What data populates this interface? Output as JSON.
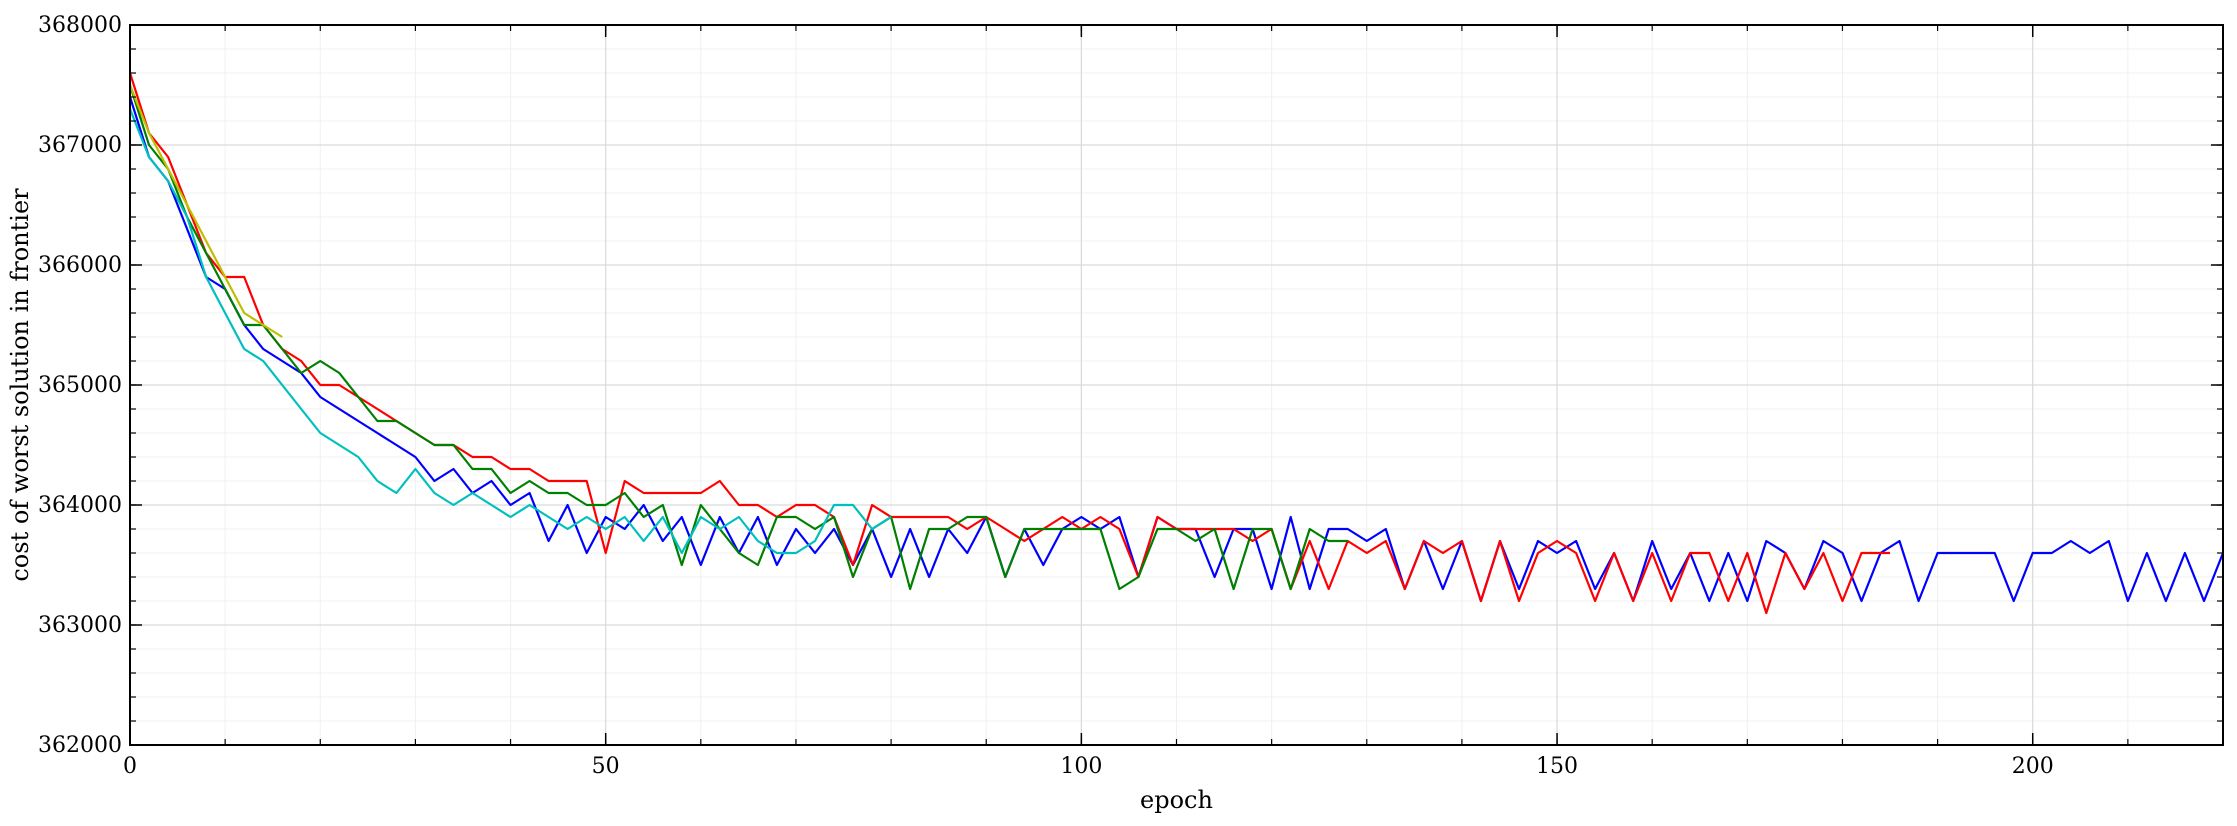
{
  "chart_data": {
    "type": "line",
    "title": "",
    "xlabel": "epoch",
    "ylabel": "cost of worst solution in frontier",
    "xlim": [
      0,
      220
    ],
    "ylim": [
      362000,
      368000
    ],
    "xticks": [
      0,
      50,
      100,
      150,
      200
    ],
    "yticks": [
      362000,
      363000,
      364000,
      365000,
      366000,
      367000,
      368000
    ],
    "xtick_labels": [
      "0",
      "50",
      "100",
      "150",
      "200"
    ],
    "ytick_labels": [
      "362000",
      "363000",
      "364000",
      "365000",
      "366000",
      "367000",
      "368000"
    ],
    "grid": true,
    "minor_grid": true,
    "legend": "none",
    "series": [
      {
        "color": "#0000ff",
        "x": [
          0,
          2,
          4,
          6,
          8,
          10,
          12,
          14,
          16,
          18,
          20,
          22,
          24,
          26,
          28,
          30,
          32,
          34,
          36,
          38,
          40,
          42,
          44,
          46,
          48,
          50,
          52,
          54,
          56,
          58,
          60,
          62,
          64,
          66,
          68,
          70,
          72,
          74,
          76,
          78,
          80,
          82,
          84,
          86,
          88,
          90,
          92,
          94,
          96,
          98,
          100,
          102,
          104,
          106,
          108,
          110,
          112,
          114,
          116,
          118,
          120,
          122,
          124,
          126,
          128,
          130,
          132,
          134,
          136,
          138,
          140,
          142,
          144,
          146,
          148,
          150,
          152,
          154,
          156,
          158,
          160,
          162,
          164,
          166,
          168,
          170,
          172,
          174,
          176,
          178,
          180,
          182,
          184,
          186,
          188,
          190,
          192,
          194,
          196,
          198,
          200,
          202,
          204,
          206,
          208,
          210,
          212,
          214,
          216,
          218,
          220
        ],
        "y": [
          367400,
          366900,
          366700,
          366300,
          365900,
          365800,
          365500,
          365300,
          365200,
          365100,
          364900,
          364800,
          364700,
          364600,
          364500,
          364400,
          364200,
          364300,
          364100,
          364200,
          364000,
          364100,
          363700,
          364000,
          363600,
          363900,
          363800,
          364000,
          363700,
          363900,
          363500,
          363900,
          363600,
          363900,
          363500,
          363800,
          363600,
          363800,
          363500,
          363800,
          363400,
          363800,
          363400,
          363800,
          363600,
          363900,
          363400,
          363800,
          363500,
          363800,
          363900,
          363800,
          363900,
          363400,
          363900,
          363800,
          363800,
          363400,
          363800,
          363800,
          363300,
          363900,
          363300,
          363800,
          363800,
          363700,
          363800,
          363300,
          363700,
          363300,
          363700,
          363200,
          363700,
          363300,
          363700,
          363600,
          363700,
          363300,
          363600,
          363200,
          363700,
          363300,
          363600,
          363200,
          363600,
          363200,
          363700,
          363600,
          363300,
          363700,
          363600,
          363200,
          363600,
          363700,
          363200,
          363600,
          363600,
          363600,
          363600,
          363200,
          363600,
          363600,
          363700,
          363600,
          363700,
          363200,
          363600,
          363200,
          363600,
          363200,
          363600
        ]
      },
      {
        "color": "#ff0000",
        "x": [
          0,
          2,
          4,
          6,
          8,
          10,
          12,
          14,
          16,
          18,
          20,
          22,
          24,
          26,
          28,
          30,
          32,
          34,
          36,
          38,
          40,
          42,
          44,
          46,
          48,
          50,
          52,
          54,
          56,
          58,
          60,
          62,
          64,
          66,
          68,
          70,
          72,
          74,
          76,
          78,
          80,
          82,
          84,
          86,
          88,
          90,
          92,
          94,
          96,
          98,
          100,
          102,
          104,
          106,
          108,
          110,
          112,
          114,
          116,
          118,
          120,
          122,
          124,
          126,
          128,
          130,
          132,
          134,
          136,
          138,
          140,
          142,
          144,
          146,
          148,
          150,
          152,
          154,
          156,
          158,
          160,
          162,
          164,
          166,
          168,
          170,
          172,
          174,
          176,
          178,
          180,
          182,
          184,
          185
        ],
        "y": [
          367600,
          367100,
          366900,
          366500,
          366100,
          365900,
          365900,
          365500,
          365300,
          365200,
          365000,
          365000,
          364900,
          364800,
          364700,
          364600,
          364500,
          364500,
          364400,
          364400,
          364300,
          364300,
          364200,
          364200,
          364200,
          363600,
          364200,
          364100,
          364100,
          364100,
          364100,
          364200,
          364000,
          364000,
          363900,
          364000,
          364000,
          363900,
          363500,
          364000,
          363900,
          363900,
          363900,
          363900,
          363800,
          363900,
          363800,
          363700,
          363800,
          363900,
          363800,
          363900,
          363800,
          363400,
          363900,
          363800,
          363800,
          363800,
          363800,
          363700,
          363800,
          363300,
          363700,
          363300,
          363700,
          363600,
          363700,
          363300,
          363700,
          363600,
          363700,
          363200,
          363700,
          363200,
          363600,
          363700,
          363600,
          363200,
          363600,
          363200,
          363600,
          363200,
          363600,
          363600,
          363200,
          363600,
          363100,
          363600,
          363300,
          363600,
          363200,
          363600,
          363600,
          363600
        ]
      },
      {
        "color": "#008000",
        "x": [
          0,
          2,
          4,
          6,
          8,
          10,
          12,
          14,
          16,
          18,
          20,
          22,
          24,
          26,
          28,
          30,
          32,
          34,
          36,
          38,
          40,
          42,
          44,
          46,
          48,
          50,
          52,
          54,
          56,
          58,
          60,
          62,
          64,
          66,
          68,
          70,
          72,
          74,
          76,
          78,
          80,
          82,
          84,
          86,
          88,
          90,
          92,
          94,
          96,
          98,
          100,
          102,
          104,
          106,
          108,
          110,
          112,
          114,
          116,
          118,
          120,
          122,
          124,
          126,
          128
        ],
        "y": [
          367500,
          367000,
          366800,
          366400,
          366100,
          365800,
          365500,
          365500,
          365300,
          365100,
          365200,
          365100,
          364900,
          364700,
          364700,
          364600,
          364500,
          364500,
          364300,
          364300,
          364100,
          364200,
          364100,
          364100,
          364000,
          364000,
          364100,
          363900,
          364000,
          363500,
          364000,
          363800,
          363600,
          363500,
          363900,
          363900,
          363800,
          363900,
          363400,
          363800,
          363900,
          363300,
          363800,
          363800,
          363900,
          363900,
          363400,
          363800,
          363800,
          363800,
          363800,
          363800,
          363300,
          363400,
          363800,
          363800,
          363700,
          363800,
          363300,
          363800,
          363800,
          363300,
          363800,
          363700,
          363700
        ]
      },
      {
        "color": "#00bfbf",
        "x": [
          0,
          2,
          4,
          6,
          8,
          10,
          12,
          14,
          16,
          18,
          20,
          22,
          24,
          26,
          28,
          30,
          32,
          34,
          36,
          38,
          40,
          42,
          44,
          46,
          48,
          50,
          52,
          54,
          56,
          58,
          60,
          62,
          64,
          66,
          68,
          70,
          72,
          74,
          76,
          78,
          80
        ],
        "y": [
          367300,
          366900,
          366700,
          366400,
          365900,
          365600,
          365300,
          365200,
          365000,
          364800,
          364600,
          364500,
          364400,
          364200,
          364100,
          364300,
          364100,
          364000,
          364100,
          364000,
          363900,
          364000,
          363900,
          363800,
          363900,
          363800,
          363900,
          363700,
          363900,
          363600,
          363900,
          363800,
          363900,
          363700,
          363600,
          363600,
          363700,
          364000,
          364000,
          363800,
          363900
        ]
      },
      {
        "color": "#bfbf00",
        "x": [
          0,
          2,
          4,
          6,
          8,
          10,
          12,
          14,
          16
        ],
        "y": [
          367500,
          367100,
          366800,
          366500,
          366200,
          365900,
          365600,
          365500,
          365400
        ]
      }
    ]
  }
}
